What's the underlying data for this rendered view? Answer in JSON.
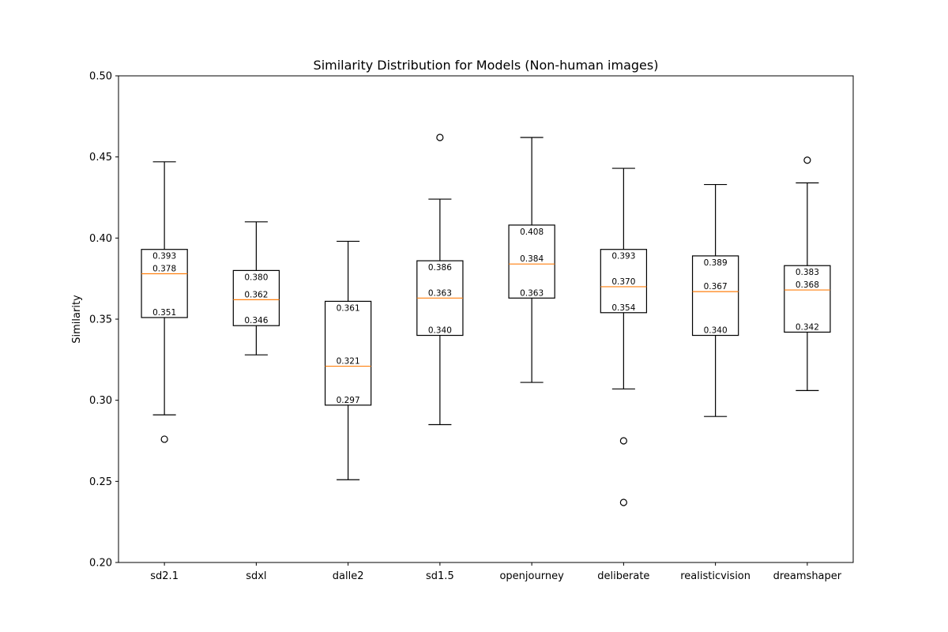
{
  "chart_data": {
    "type": "box",
    "title": "Similarity Distribution for Models (Non-human images)",
    "xlabel": "",
    "ylabel": "Similarity",
    "ylim": [
      0.2,
      0.5
    ],
    "yticks": [
      "0.20",
      "0.25",
      "0.30",
      "0.35",
      "0.40",
      "0.45",
      "0.50"
    ],
    "grid": false,
    "median_color": "#ff7f0e",
    "box_color": "#000000",
    "categories": [
      "sd2.1",
      "sdxl",
      "dalle2",
      "sd1.5",
      "openjourney",
      "deliberate",
      "realisticvision",
      "dreamshaper"
    ],
    "boxes": [
      {
        "name": "sd2.1",
        "whisker_low": 0.291,
        "q1": 0.351,
        "median": 0.378,
        "q3": 0.393,
        "whisker_high": 0.447,
        "outliers": [
          0.276
        ],
        "q1_label": "0.351",
        "median_label": "0.378",
        "q3_label": "0.393"
      },
      {
        "name": "sdxl",
        "whisker_low": 0.328,
        "q1": 0.346,
        "median": 0.362,
        "q3": 0.38,
        "whisker_high": 0.41,
        "outliers": [],
        "q1_label": "0.346",
        "median_label": "0.362",
        "q3_label": "0.380"
      },
      {
        "name": "dalle2",
        "whisker_low": 0.251,
        "q1": 0.297,
        "median": 0.321,
        "q3": 0.361,
        "whisker_high": 0.398,
        "outliers": [],
        "q1_label": "0.297",
        "median_label": "0.321",
        "q3_label": "0.361"
      },
      {
        "name": "sd1.5",
        "whisker_low": 0.285,
        "q1": 0.34,
        "median": 0.363,
        "q3": 0.386,
        "whisker_high": 0.424,
        "outliers": [
          0.462
        ],
        "q1_label": "0.340",
        "median_label": "0.363",
        "q3_label": "0.386"
      },
      {
        "name": "openjourney",
        "whisker_low": 0.311,
        "q1": 0.363,
        "median": 0.384,
        "q3": 0.408,
        "whisker_high": 0.462,
        "outliers": [],
        "q1_label": "0.363",
        "median_label": "0.384",
        "q3_label": "0.408"
      },
      {
        "name": "deliberate",
        "whisker_low": 0.307,
        "q1": 0.354,
        "median": 0.37,
        "q3": 0.393,
        "whisker_high": 0.443,
        "outliers": [
          0.275,
          0.237
        ],
        "q1_label": "0.354",
        "median_label": "0.370",
        "q3_label": "0.393"
      },
      {
        "name": "realisticvision",
        "whisker_low": 0.29,
        "q1": 0.34,
        "median": 0.367,
        "q3": 0.389,
        "whisker_high": 0.433,
        "outliers": [],
        "q1_label": "0.340",
        "median_label": "0.367",
        "q3_label": "0.389"
      },
      {
        "name": "dreamshaper",
        "whisker_low": 0.306,
        "q1": 0.342,
        "median": 0.368,
        "q3": 0.383,
        "whisker_high": 0.434,
        "outliers": [
          0.448
        ],
        "q1_label": "0.342",
        "median_label": "0.368",
        "q3_label": "0.383"
      }
    ]
  }
}
